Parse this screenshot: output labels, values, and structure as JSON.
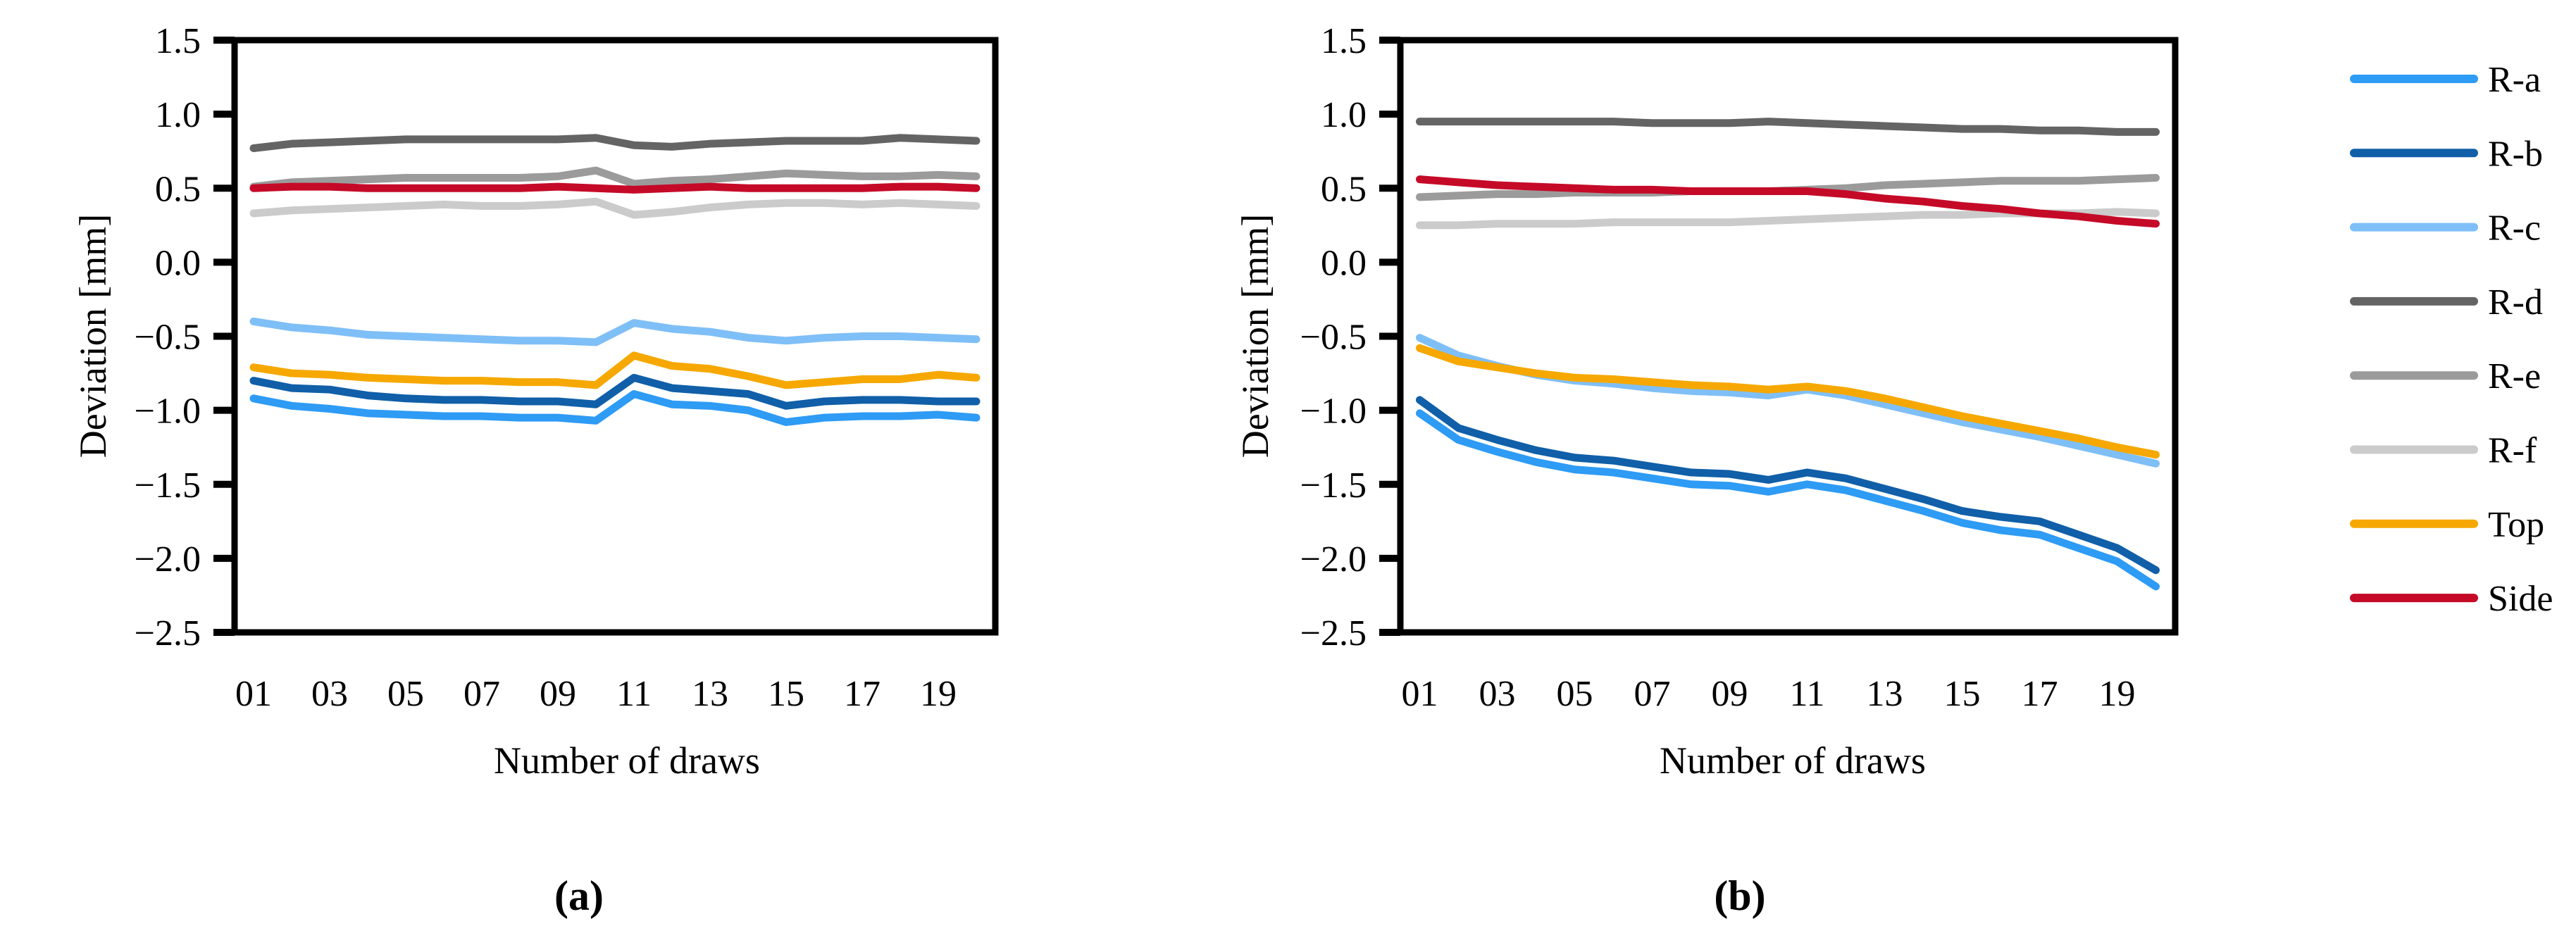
{
  "figure": {
    "y_axis_label": "Deviation [mm]",
    "x_axis_label": "Number of draws",
    "captions": {
      "a": "(a)",
      "b": "(b)"
    },
    "y_tick_labels": [
      "1.5",
      "1.0",
      "0.5",
      "0.0",
      "−0.5",
      "−1.0",
      "−1.5",
      "−2.0",
      "−2.5"
    ],
    "x_tick_labels": [
      "01",
      "03",
      "05",
      "07",
      "09",
      "11",
      "13",
      "15",
      "17",
      "19"
    ],
    "axis_color": "#000000",
    "background_color": "#ffffff"
  },
  "legend": {
    "items": [
      {
        "label": "R-a",
        "color": "#2E9BF5"
      },
      {
        "label": "R-b",
        "color": "#105FA8"
      },
      {
        "label": "R-c",
        "color": "#7FBFF7"
      },
      {
        "label": "R-d",
        "color": "#646464"
      },
      {
        "label": "R-e",
        "color": "#9B9B9B"
      },
      {
        "label": "R-f",
        "color": "#CBCBCB"
      },
      {
        "label": "Top",
        "color": "#F6A800"
      },
      {
        "label": "Side",
        "color": "#C50A28"
      }
    ]
  },
  "chart_data": [
    {
      "type": "line",
      "title": "(a)",
      "xlabel": "Number of draws",
      "ylabel": "Deviation [mm]",
      "x": [
        1,
        2,
        3,
        4,
        5,
        6,
        7,
        8,
        9,
        10,
        11,
        12,
        13,
        14,
        15,
        16,
        17,
        18,
        19,
        20
      ],
      "x_tick_labels": [
        "01",
        "03",
        "05",
        "07",
        "09",
        "11",
        "13",
        "15",
        "17",
        "19"
      ],
      "ylim": [
        -2.5,
        1.5
      ],
      "y_tick_step": 0.5,
      "grid": false,
      "legend_position": "outside-right-shared",
      "series": [
        {
          "name": "R-a",
          "color": "#2E9BF5",
          "values": [
            -0.92,
            -0.97,
            -0.99,
            -1.02,
            -1.03,
            -1.04,
            -1.04,
            -1.05,
            -1.05,
            -1.07,
            -0.89,
            -0.96,
            -0.97,
            -1.0,
            -1.08,
            -1.05,
            -1.04,
            -1.04,
            -1.03,
            -1.05
          ]
        },
        {
          "name": "R-b",
          "color": "#105FA8",
          "values": [
            -0.8,
            -0.85,
            -0.86,
            -0.9,
            -0.92,
            -0.93,
            -0.93,
            -0.94,
            -0.94,
            -0.96,
            -0.78,
            -0.85,
            -0.87,
            -0.89,
            -0.97,
            -0.94,
            -0.93,
            -0.93,
            -0.94,
            -0.94
          ]
        },
        {
          "name": "R-c",
          "color": "#7FBFF7",
          "values": [
            -0.4,
            -0.44,
            -0.46,
            -0.49,
            -0.5,
            -0.51,
            -0.52,
            -0.53,
            -0.53,
            -0.54,
            -0.41,
            -0.45,
            -0.47,
            -0.51,
            -0.53,
            -0.51,
            -0.5,
            -0.5,
            -0.51,
            -0.52
          ]
        },
        {
          "name": "R-d",
          "color": "#646464",
          "values": [
            0.77,
            0.8,
            0.81,
            0.82,
            0.83,
            0.83,
            0.83,
            0.83,
            0.83,
            0.84,
            0.79,
            0.78,
            0.8,
            0.81,
            0.82,
            0.82,
            0.82,
            0.84,
            0.83,
            0.82
          ]
        },
        {
          "name": "R-e",
          "color": "#9B9B9B",
          "values": [
            0.51,
            0.54,
            0.55,
            0.56,
            0.57,
            0.57,
            0.57,
            0.57,
            0.58,
            0.62,
            0.53,
            0.55,
            0.56,
            0.58,
            0.6,
            0.59,
            0.58,
            0.58,
            0.59,
            0.58
          ]
        },
        {
          "name": "R-f",
          "color": "#CBCBCB",
          "values": [
            0.33,
            0.35,
            0.36,
            0.37,
            0.38,
            0.39,
            0.38,
            0.38,
            0.39,
            0.41,
            0.32,
            0.34,
            0.37,
            0.39,
            0.4,
            0.4,
            0.39,
            0.4,
            0.39,
            0.38
          ]
        },
        {
          "name": "Top",
          "color": "#F6A800",
          "values": [
            -0.71,
            -0.75,
            -0.76,
            -0.78,
            -0.79,
            -0.8,
            -0.8,
            -0.81,
            -0.81,
            -0.83,
            -0.63,
            -0.7,
            -0.72,
            -0.77,
            -0.83,
            -0.81,
            -0.79,
            -0.79,
            -0.76,
            -0.78
          ]
        },
        {
          "name": "Side",
          "color": "#C50A28",
          "values": [
            0.5,
            0.51,
            0.51,
            0.5,
            0.5,
            0.5,
            0.5,
            0.5,
            0.51,
            0.5,
            0.49,
            0.5,
            0.51,
            0.5,
            0.5,
            0.5,
            0.5,
            0.51,
            0.51,
            0.5
          ]
        }
      ]
    },
    {
      "type": "line",
      "title": "(b)",
      "xlabel": "Number of draws",
      "ylabel": "Deviation [mm]",
      "x": [
        1,
        2,
        3,
        4,
        5,
        6,
        7,
        8,
        9,
        10,
        11,
        12,
        13,
        14,
        15,
        16,
        17,
        18,
        19,
        20
      ],
      "x_tick_labels": [
        "01",
        "03",
        "05",
        "07",
        "09",
        "11",
        "13",
        "15",
        "17",
        "19"
      ],
      "ylim": [
        -2.5,
        1.5
      ],
      "y_tick_step": 0.5,
      "grid": false,
      "legend_position": "outside-right-shared",
      "series": [
        {
          "name": "R-a",
          "color": "#2E9BF5",
          "values": [
            -1.02,
            -1.2,
            -1.28,
            -1.35,
            -1.4,
            -1.42,
            -1.46,
            -1.5,
            -1.51,
            -1.55,
            -1.5,
            -1.54,
            -1.61,
            -1.68,
            -1.76,
            -1.81,
            -1.84,
            -1.93,
            -2.02,
            -2.19
          ]
        },
        {
          "name": "R-b",
          "color": "#105FA8",
          "values": [
            -0.93,
            -1.12,
            -1.2,
            -1.27,
            -1.32,
            -1.34,
            -1.38,
            -1.42,
            -1.43,
            -1.47,
            -1.42,
            -1.46,
            -1.53,
            -1.6,
            -1.68,
            -1.72,
            -1.75,
            -1.84,
            -1.93,
            -2.08
          ]
        },
        {
          "name": "R-c",
          "color": "#7FBFF7",
          "values": [
            -0.51,
            -0.63,
            -0.7,
            -0.76,
            -0.8,
            -0.82,
            -0.85,
            -0.87,
            -0.88,
            -0.9,
            -0.86,
            -0.9,
            -0.96,
            -1.02,
            -1.08,
            -1.13,
            -1.18,
            -1.24,
            -1.3,
            -1.36
          ]
        },
        {
          "name": "R-d",
          "color": "#646464",
          "values": [
            0.95,
            0.95,
            0.95,
            0.95,
            0.95,
            0.95,
            0.94,
            0.94,
            0.94,
            0.95,
            0.94,
            0.93,
            0.92,
            0.91,
            0.9,
            0.9,
            0.89,
            0.89,
            0.88,
            0.88
          ]
        },
        {
          "name": "R-e",
          "color": "#9B9B9B",
          "values": [
            0.44,
            0.45,
            0.46,
            0.46,
            0.47,
            0.47,
            0.47,
            0.48,
            0.48,
            0.48,
            0.49,
            0.5,
            0.52,
            0.53,
            0.54,
            0.55,
            0.55,
            0.55,
            0.56,
            0.57
          ]
        },
        {
          "name": "R-f",
          "color": "#CBCBCB",
          "values": [
            0.25,
            0.25,
            0.26,
            0.26,
            0.26,
            0.27,
            0.27,
            0.27,
            0.27,
            0.28,
            0.29,
            0.3,
            0.31,
            0.32,
            0.32,
            0.33,
            0.33,
            0.33,
            0.34,
            0.33
          ]
        },
        {
          "name": "Top",
          "color": "#F6A800",
          "values": [
            -0.58,
            -0.67,
            -0.71,
            -0.75,
            -0.78,
            -0.79,
            -0.81,
            -0.83,
            -0.84,
            -0.86,
            -0.84,
            -0.87,
            -0.92,
            -0.98,
            -1.04,
            -1.09,
            -1.14,
            -1.19,
            -1.25,
            -1.3
          ]
        },
        {
          "name": "Side",
          "color": "#C50A28",
          "values": [
            0.56,
            0.54,
            0.52,
            0.51,
            0.5,
            0.49,
            0.49,
            0.48,
            0.48,
            0.48,
            0.48,
            0.46,
            0.43,
            0.41,
            0.38,
            0.36,
            0.33,
            0.31,
            0.28,
            0.26
          ]
        }
      ]
    }
  ]
}
